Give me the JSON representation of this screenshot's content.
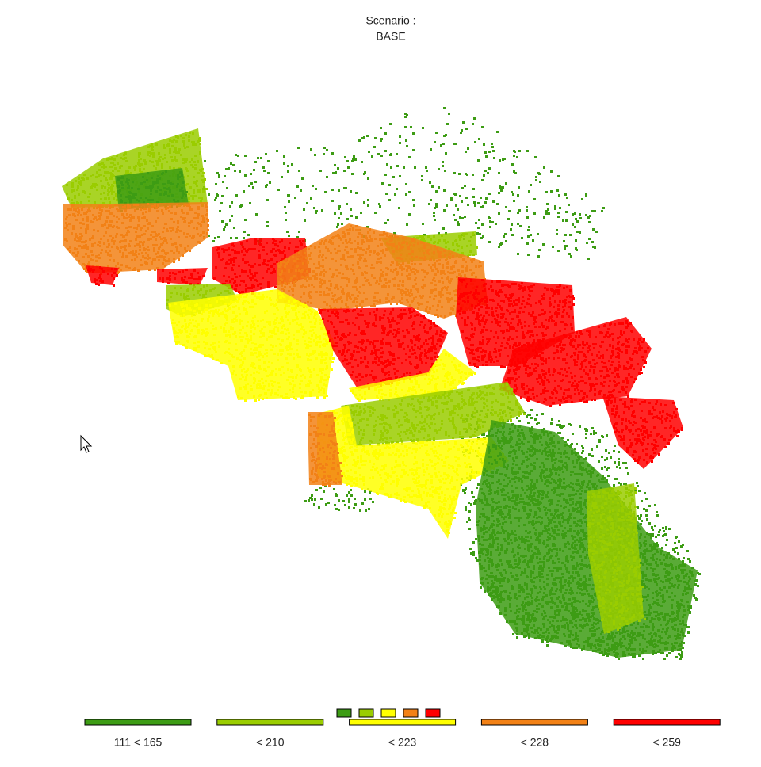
{
  "title": [
    "Scenario :",
    "BASE"
  ],
  "legend": {
    "items": [
      {
        "label": "111 < 165",
        "color": "#3d9c14"
      },
      {
        "label": "< 210",
        "color": "#9acd00"
      },
      {
        "label": "< 223",
        "color": "#ffff00"
      },
      {
        "label": "< 228",
        "color": "#f28116"
      },
      {
        "label": "< 259",
        "color": "#ff0000"
      }
    ]
  }
}
